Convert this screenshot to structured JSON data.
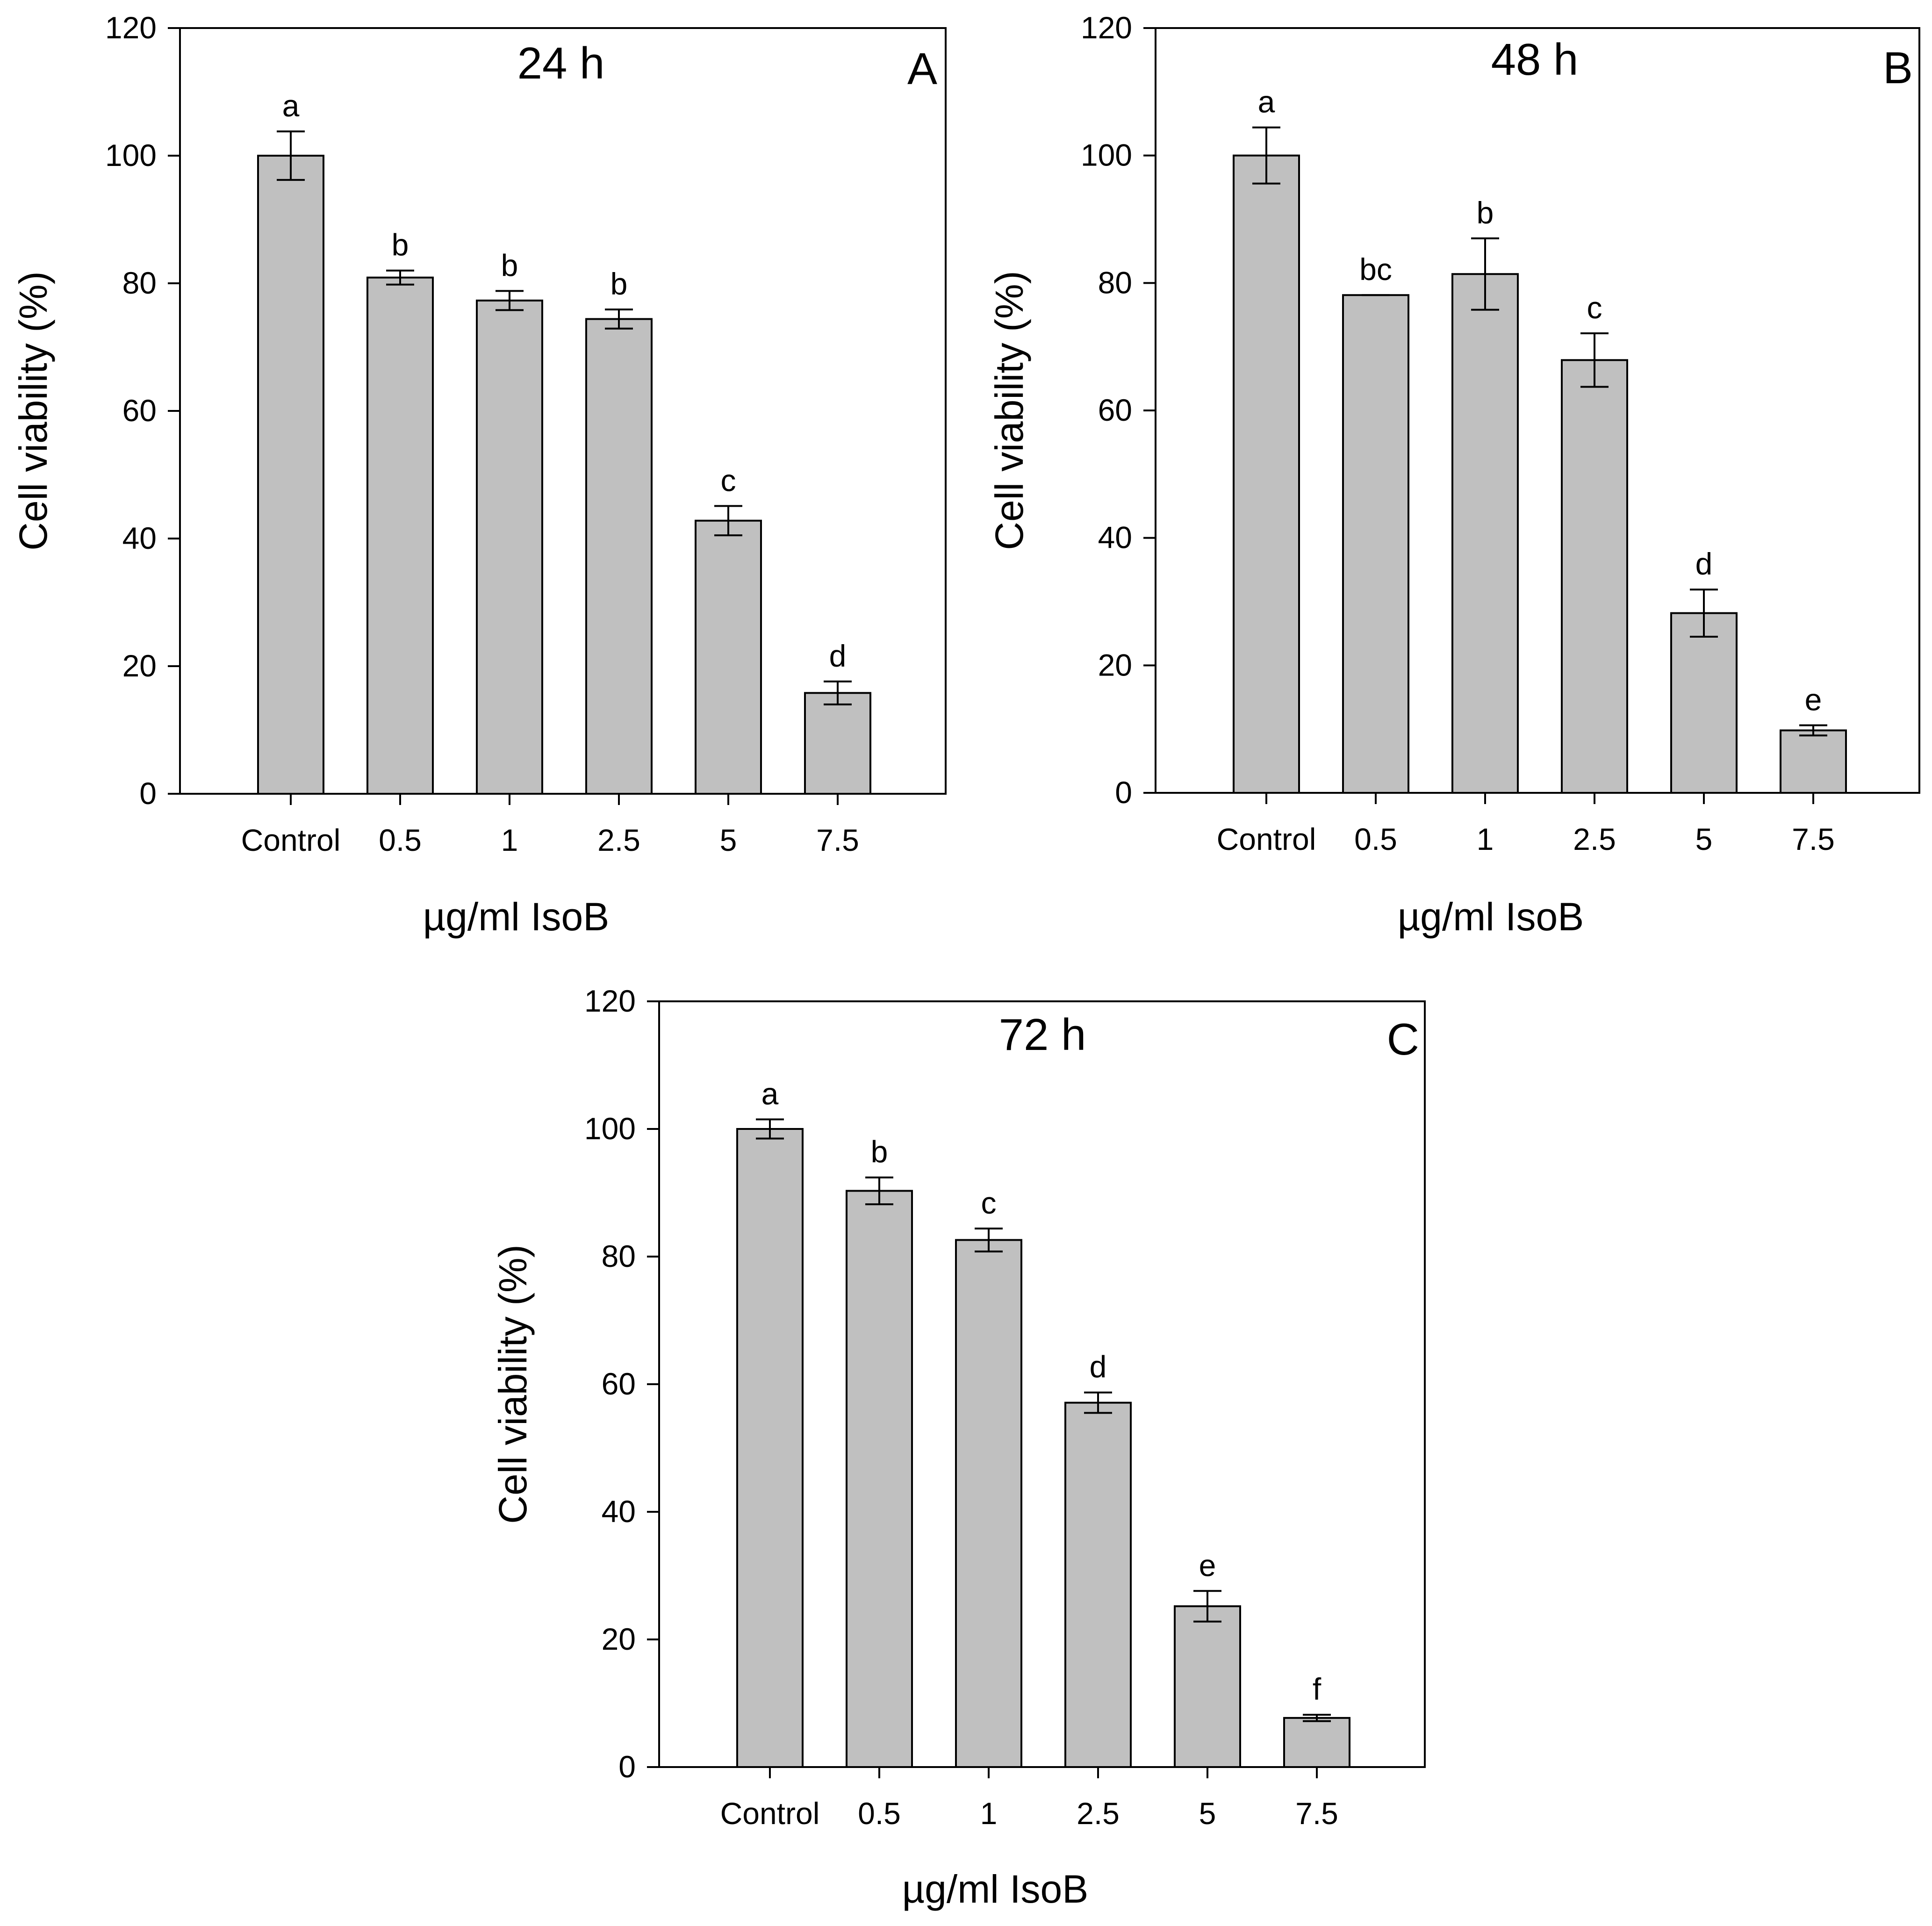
{
  "colors": {
    "bar_fill": "#c0c0c0",
    "bar_stroke": "#000000",
    "axis": "#000000",
    "background": "#ffffff"
  },
  "chart_data": [
    {
      "type": "bar",
      "panel": "A",
      "title": "24 h",
      "xlabel": "µg/ml IsoB",
      "ylabel": "Cell viability (%)",
      "ylim": [
        0,
        120
      ],
      "yticks": [
        "0",
        "20",
        "40",
        "60",
        "80",
        "100",
        "120"
      ],
      "categories": [
        "Control",
        "0.5",
        "1",
        "2.5",
        "5",
        "7.5"
      ],
      "values": [
        100,
        80.9,
        77.3,
        74.4,
        42.8,
        15.8
      ],
      "errors": [
        3.8,
        1.1,
        1.5,
        1.5,
        2.3,
        1.8
      ],
      "significance": [
        "a",
        "b",
        "b",
        "b",
        "c",
        "d"
      ]
    },
    {
      "type": "bar",
      "panel": "B",
      "title": "48 h",
      "xlabel": "µg/ml IsoB",
      "ylabel": "Cell viability (%)",
      "ylim": [
        0,
        120
      ],
      "yticks": [
        "0",
        "20",
        "40",
        "60",
        "80",
        "100",
        "120"
      ],
      "categories": [
        "Control",
        "0.5",
        "1",
        "2.5",
        "5",
        "7.5"
      ],
      "values": [
        100,
        78.1,
        81.4,
        67.9,
        28.2,
        9.8
      ],
      "errors": [
        4.4,
        0.0,
        5.6,
        4.2,
        3.7,
        0.8
      ],
      "significance": [
        "a",
        "bc",
        "b",
        "c",
        "d",
        "e"
      ]
    },
    {
      "type": "bar",
      "panel": "C",
      "title": "72 h",
      "xlabel": "µg/ml IsoB",
      "ylabel": "Cell viability (%)",
      "ylim": [
        0,
        120
      ],
      "yticks": [
        "0",
        "20",
        "40",
        "60",
        "80",
        "100",
        "120"
      ],
      "categories": [
        "Control",
        "0.5",
        "1",
        "2.5",
        "5",
        "7.5"
      ],
      "values": [
        100,
        90.3,
        82.6,
        57.1,
        25.2,
        7.7
      ],
      "errors": [
        1.5,
        2.1,
        1.8,
        1.6,
        2.4,
        0.5
      ],
      "significance": [
        "a",
        "b",
        "c",
        "d",
        "e",
        "f"
      ]
    }
  ]
}
